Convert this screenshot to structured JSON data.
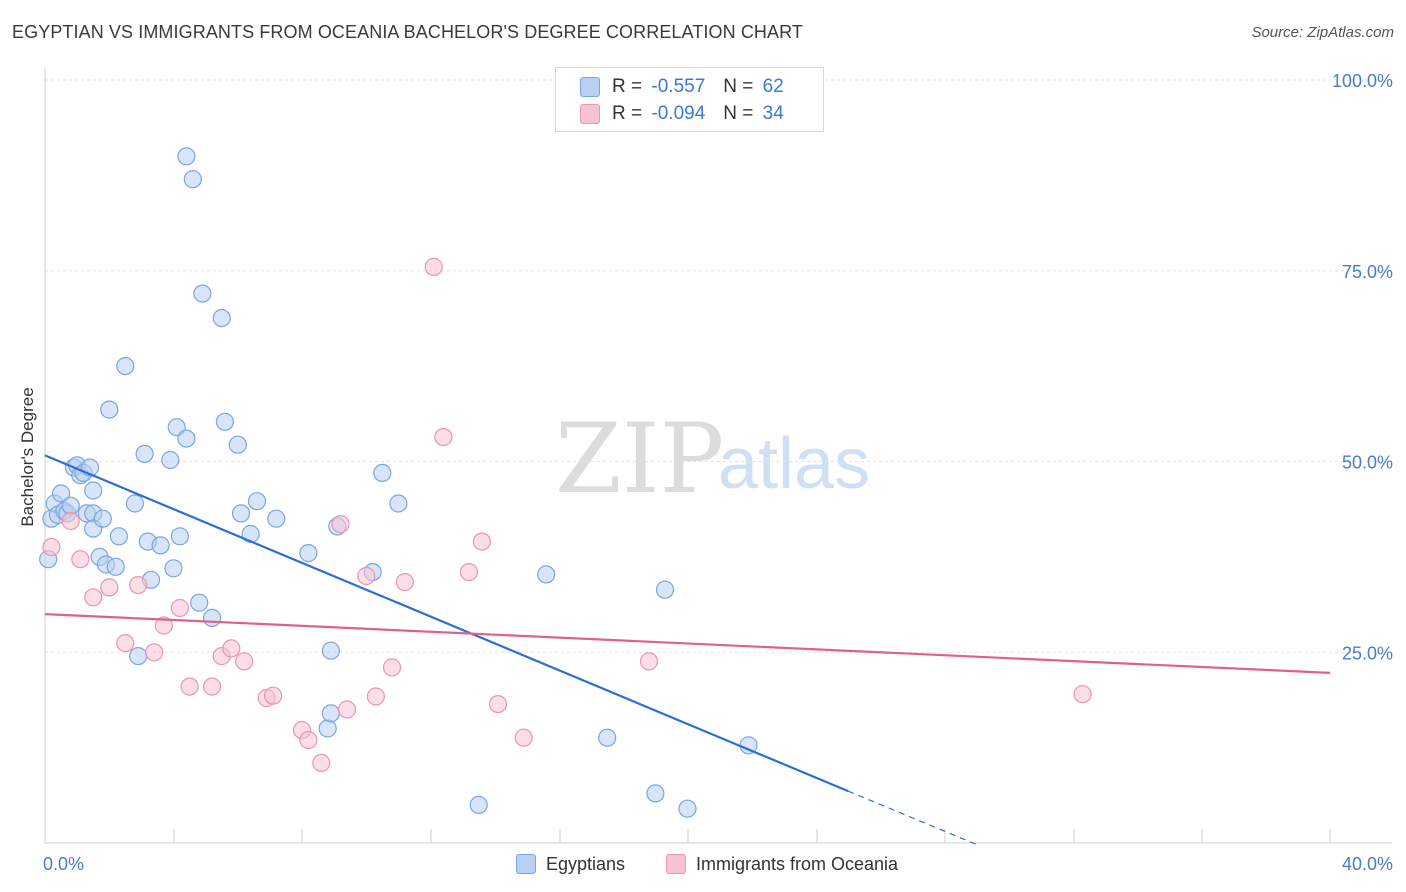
{
  "title": "EGYPTIAN VS IMMIGRANTS FROM OCEANIA BACHELOR'S DEGREE CORRELATION CHART",
  "source": "Source: ZipAtlas.com",
  "watermark": {
    "zip": "ZIP",
    "atlas": "atlas"
  },
  "legend": {
    "series1": {
      "r_label": "R =",
      "r_value": "-0.557",
      "n_label": "N =",
      "n_value": "62"
    },
    "series2": {
      "r_label": "R =",
      "r_value": "-0.094",
      "n_label": "N =",
      "n_value": "34"
    }
  },
  "colors": {
    "blue_fill": "#b8d0f2",
    "blue_stroke": "#7aa6e0",
    "blue_line": "#2d6fd1",
    "pink_fill": "#f7c3d3",
    "pink_stroke": "#ee93b0",
    "pink_line": "#e0608d"
  },
  "chart_data": {
    "type": "scatter",
    "title": "EGYPTIAN VS IMMIGRANTS FROM OCEANIA BACHELOR'S DEGREE CORRELATION CHART",
    "xlabel": "",
    "ylabel": "Bachelor's Degree",
    "xlim": [
      0,
      40
    ],
    "ylim": [
      0,
      105
    ],
    "x_tick_labels": [
      {
        "value": 0,
        "label": "0.0%"
      },
      {
        "value": 40,
        "label": "40.0%"
      }
    ],
    "y_tick_labels": [
      {
        "value": 25,
        "label": "25.0%"
      },
      {
        "value": 50,
        "label": "50.0%"
      },
      {
        "value": 75,
        "label": "75.0%"
      },
      {
        "value": 100,
        "label": "100.0%"
      }
    ],
    "grid": true,
    "legend_position": "top-center",
    "series": [
      {
        "name": "Egyptians",
        "color": "#7aa6e0",
        "points": [
          [
            0.1,
            37.2
          ],
          [
            0.2,
            42.5
          ],
          [
            0.3,
            44.5
          ],
          [
            0.4,
            43
          ],
          [
            0.5,
            45.8
          ],
          [
            0.6,
            43.5
          ],
          [
            0.7,
            43.2
          ],
          [
            0.8,
            44.2
          ],
          [
            0.9,
            49.2
          ],
          [
            1.0,
            49.5
          ],
          [
            1.1,
            48.2
          ],
          [
            1.2,
            48.5
          ],
          [
            1.3,
            43.2
          ],
          [
            1.4,
            49.2
          ],
          [
            1.5,
            46.2
          ],
          [
            1.5,
            43.2
          ],
          [
            1.5,
            41.2
          ],
          [
            1.7,
            37.5
          ],
          [
            1.8,
            42.5
          ],
          [
            1.9,
            36.5
          ],
          [
            2.0,
            56.8
          ],
          [
            2.2,
            36.2
          ],
          [
            2.3,
            40.2
          ],
          [
            2.5,
            62.5
          ],
          [
            2.8,
            44.5
          ],
          [
            2.9,
            24.5
          ],
          [
            3.1,
            51
          ],
          [
            3.2,
            39.5
          ],
          [
            3.3,
            34.5
          ],
          [
            3.6,
            39
          ],
          [
            3.9,
            50.2
          ],
          [
            4.0,
            36
          ],
          [
            4.1,
            54.5
          ],
          [
            4.2,
            40.2
          ],
          [
            4.4,
            90
          ],
          [
            4.4,
            53
          ],
          [
            4.6,
            87
          ],
          [
            4.8,
            31.5
          ],
          [
            4.9,
            72
          ],
          [
            5.2,
            29.5
          ],
          [
            5.5,
            68.8
          ],
          [
            5.6,
            55.2
          ],
          [
            6.0,
            52.2
          ],
          [
            6.1,
            43.2
          ],
          [
            6.4,
            40.5
          ],
          [
            6.6,
            44.8
          ],
          [
            7.2,
            42.5
          ],
          [
            8.2,
            38
          ],
          [
            8.8,
            15
          ],
          [
            8.9,
            17
          ],
          [
            8.9,
            25.2
          ],
          [
            9.1,
            41.5
          ],
          [
            10.2,
            35.5
          ],
          [
            10.5,
            48.5
          ],
          [
            11.0,
            44.5
          ],
          [
            13.5,
            5
          ],
          [
            15.6,
            35.2
          ],
          [
            17.5,
            13.8
          ],
          [
            19.0,
            6.5
          ],
          [
            19.3,
            33.2
          ],
          [
            20.0,
            4.5
          ],
          [
            21.9,
            12.8
          ]
        ]
      },
      {
        "name": "Immigrants from Oceania",
        "color": "#ee93b0",
        "points": [
          [
            0.2,
            38.8
          ],
          [
            0.8,
            42.2
          ],
          [
            1.1,
            37.2
          ],
          [
            1.5,
            32.2
          ],
          [
            2.0,
            33.5
          ],
          [
            2.5,
            26.2
          ],
          [
            2.9,
            33.8
          ],
          [
            3.4,
            25
          ],
          [
            3.7,
            28.5
          ],
          [
            4.2,
            30.8
          ],
          [
            4.5,
            20.5
          ],
          [
            5.2,
            20.5
          ],
          [
            5.5,
            24.5
          ],
          [
            5.8,
            25.5
          ],
          [
            6.2,
            23.8
          ],
          [
            6.9,
            19
          ],
          [
            7.1,
            19.3
          ],
          [
            8.0,
            14.8
          ],
          [
            8.2,
            13.5
          ],
          [
            8.6,
            10.5
          ],
          [
            9.2,
            41.8
          ],
          [
            9.4,
            17.5
          ],
          [
            10.0,
            35
          ],
          [
            10.3,
            19.2
          ],
          [
            10.8,
            23
          ],
          [
            11.2,
            34.2
          ],
          [
            12.1,
            75.5
          ],
          [
            12.4,
            53.2
          ],
          [
            13.2,
            35.5
          ],
          [
            13.6,
            39.5
          ],
          [
            14.1,
            18.2
          ],
          [
            14.9,
            13.8
          ],
          [
            18.8,
            23.8
          ],
          [
            32.3,
            19.5
          ]
        ]
      }
    ],
    "trend_lines": [
      {
        "series": "Egyptians",
        "from": [
          0,
          50.8
        ],
        "to": [
          25,
          6.8
        ],
        "dashed_to": [
          29,
          -0.2
        ]
      },
      {
        "series": "Immigrants from Oceania",
        "from": [
          0,
          30
        ],
        "to": [
          40,
          22.3
        ]
      }
    ]
  },
  "bottom_legend": [
    {
      "name": "Egyptians"
    },
    {
      "name": "Immigrants from Oceania"
    }
  ]
}
